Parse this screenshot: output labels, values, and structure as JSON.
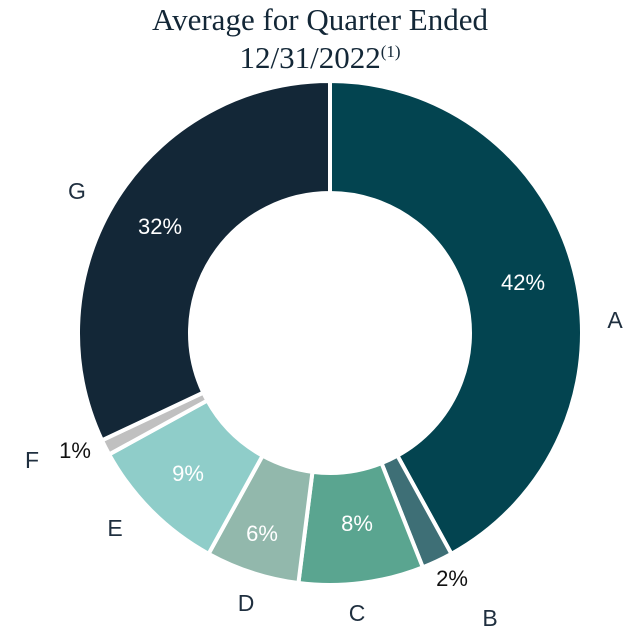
{
  "chart_data": {
    "type": "donut",
    "title_lines": [
      "Average for Quarter Ended",
      "12/31/2022"
    ],
    "title_footnote_ref": "(1)",
    "categories": [
      "A",
      "B",
      "C",
      "D",
      "E",
      "F",
      "G"
    ],
    "values": [
      42,
      2,
      8,
      6,
      9,
      1,
      32
    ],
    "value_labels": [
      "42%",
      "2%",
      "8%",
      "6%",
      "9%",
      "1%",
      "32%"
    ],
    "colors": [
      "#034450",
      "#3e6f76",
      "#5aa590",
      "#92b8ac",
      "#8fcdc9",
      "#c0c0c0",
      "#132737"
    ]
  }
}
